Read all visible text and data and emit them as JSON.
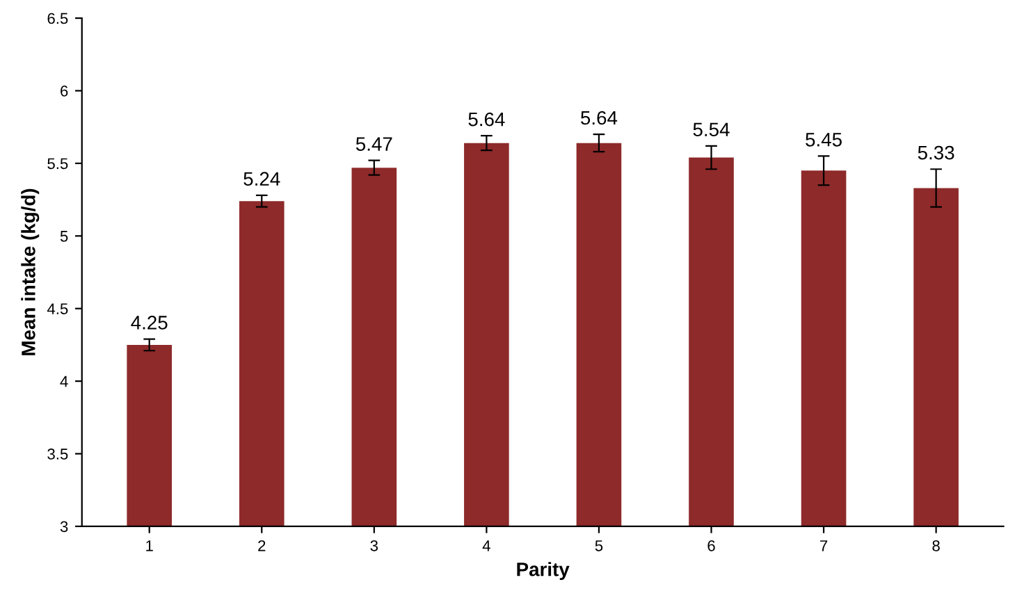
{
  "chart_data": {
    "type": "bar",
    "xlabel": "Parity",
    "ylabel": "Mean intake (kg/d)",
    "categories": [
      "1",
      "2",
      "3",
      "4",
      "5",
      "6",
      "7",
      "8"
    ],
    "values": [
      4.25,
      5.24,
      5.47,
      5.64,
      5.64,
      5.54,
      5.45,
      5.33
    ],
    "errors": [
      0.04,
      0.04,
      0.05,
      0.05,
      0.06,
      0.08,
      0.1,
      0.13
    ],
    "color": "#8e2a2a",
    "ylim": [
      3,
      6.5
    ],
    "yticks": [
      3,
      3.5,
      4,
      4.5,
      5,
      5.5,
      6,
      6.5
    ],
    "data_labels": true,
    "grid": false,
    "legend": false
  }
}
